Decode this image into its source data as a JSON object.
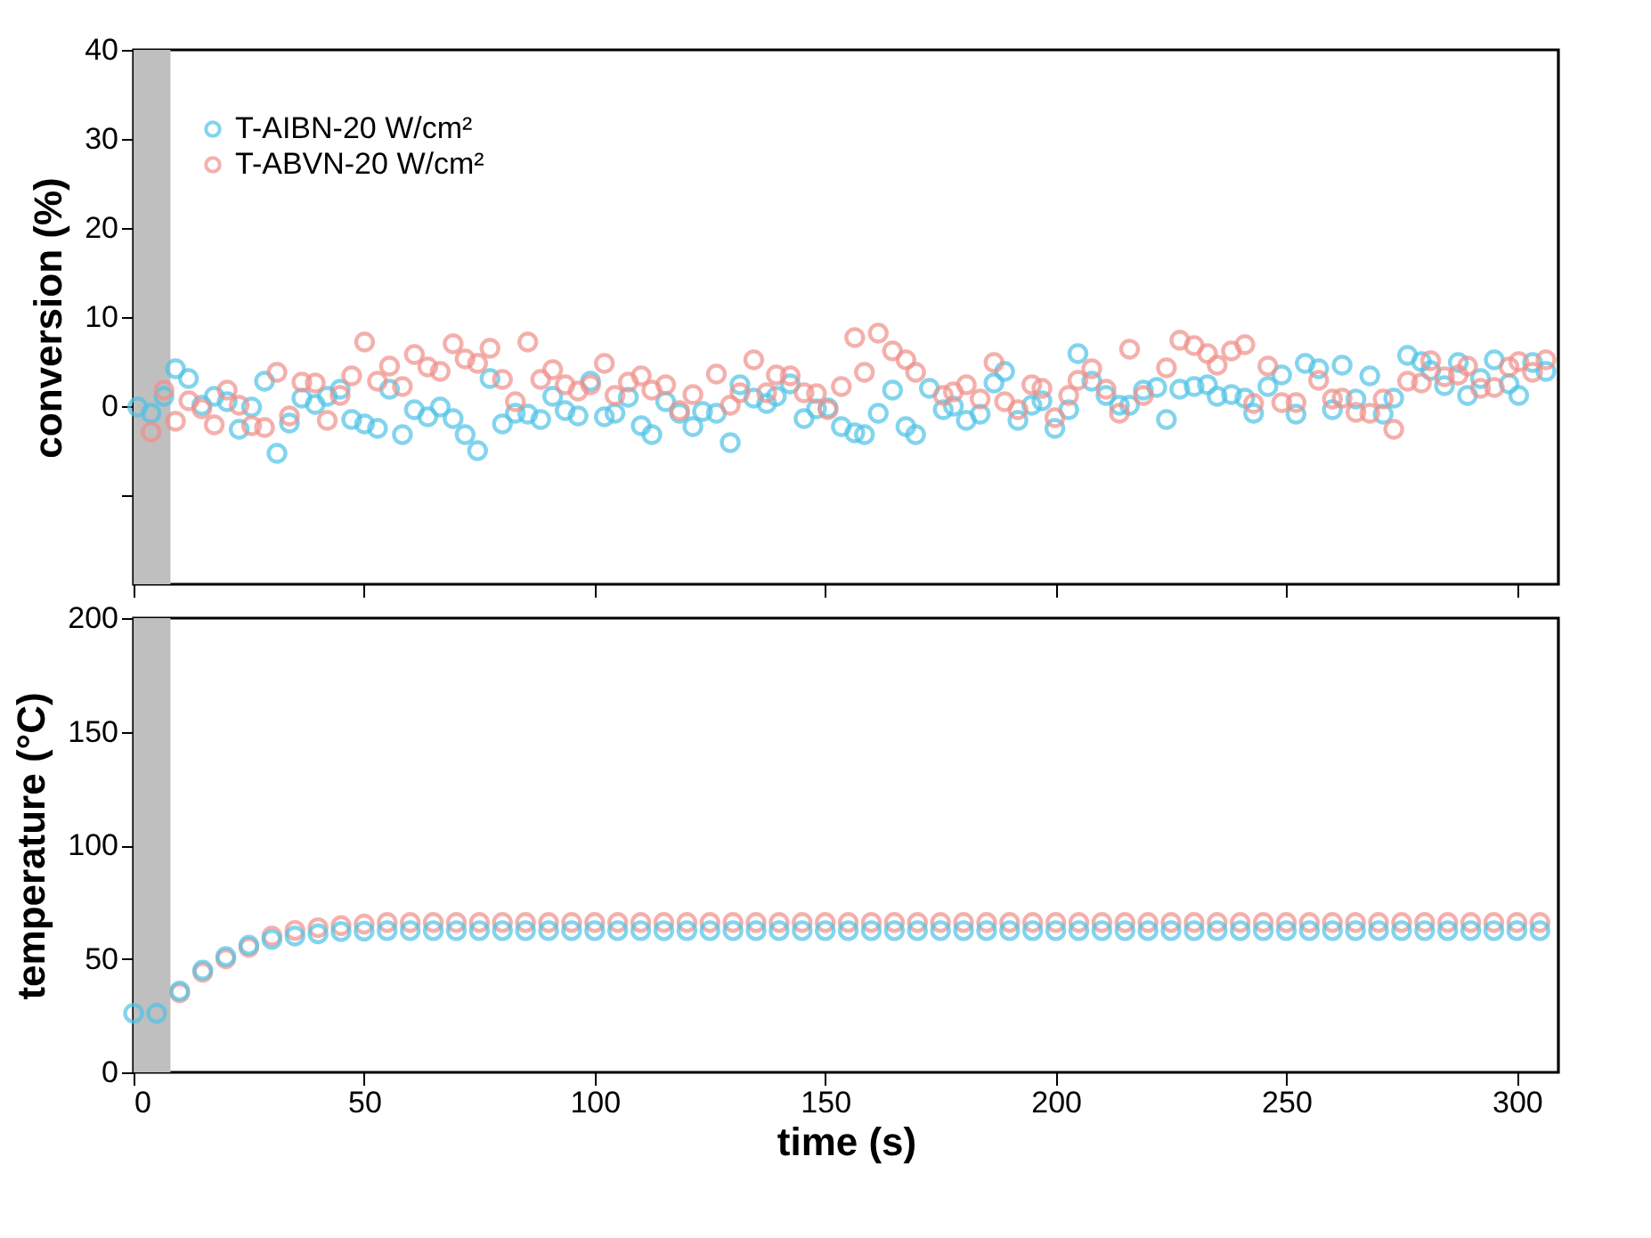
{
  "chart_data": [
    {
      "type": "scatter",
      "ylabel": "conversion (%)",
      "xlim": [
        0,
        309
      ],
      "xticks": [
        0,
        50,
        100,
        150,
        200,
        250,
        300
      ],
      "ylim": [
        -20,
        40
      ],
      "yticks": [
        {
          "value": -10,
          "label": null
        },
        0,
        10,
        20,
        30,
        40
      ],
      "tick_labels": "y",
      "marker": "circle",
      "legend": "top left",
      "bands": [
        {
          "axis": "x",
          "from": 0,
          "to": 8,
          "color": "#bfbfbf"
        }
      ],
      "series": [
        {
          "name": "T-AIBN-20 W/cm²",
          "color": "#4fc3e6",
          "x": [
            0.9,
            3.8,
            6.6,
            9.1,
            11.9,
            14.8,
            17.5,
            20.3,
            22.9,
            25.6,
            28.4,
            31.1,
            33.8,
            36.5,
            39.4,
            42,
            44.8,
            47.3,
            50.1,
            52.9,
            55.5,
            58.3,
            60.9,
            63.8,
            66.5,
            69.3,
            71.9,
            74.6,
            77.3,
            80,
            82.8,
            85.5,
            88.3,
            90.9,
            93.6,
            96.4,
            99.1,
            102.1,
            104.4,
            107.3,
            110.1,
            112.4,
            115.4,
            118.4,
            121.3,
            123.4,
            126.4,
            129.4,
            131.5,
            134.5,
            137.3,
            139.4,
            142.4,
            145.4,
            148.1,
            150.6,
            153.5,
            156.4,
            158.5,
            161.5,
            164.6,
            167.5,
            169.6,
            172.6,
            175.6,
            177.8,
            180.6,
            183.6,
            186.6,
            188.9,
            191.8,
            194.8,
            197,
            199.8,
            202.8,
            204.8,
            207.8,
            210.9,
            213.8,
            216,
            219,
            221.9,
            224,
            226.9,
            230,
            232.9,
            235,
            238.1,
            241,
            242.9,
            246,
            249,
            252.1,
            254.1,
            257,
            260,
            262.1,
            265.1,
            268.1,
            271,
            273.3,
            276.3,
            279.3,
            281.3,
            284.3,
            287.3,
            289.3,
            292.1,
            295.1,
            298.3,
            300.4,
            303.4,
            306.3
          ],
          "values": [
            -0.1,
            -0.8,
            1.1,
            4.2,
            3.1,
            0.1,
            1.1,
            0.5,
            -2.6,
            -0.1,
            2.8,
            -5.3,
            -1.9,
            0.9,
            0.2,
            1.1,
            1.9,
            -1.5,
            -2.0,
            -2.5,
            1.9,
            -3.2,
            -0.4,
            -1.2,
            -0.1,
            -1.4,
            -3.2,
            -5.0,
            3.1,
            -2.0,
            -0.8,
            -0.9,
            -1.5,
            1.1,
            -0.5,
            -1.1,
            2.8,
            -1.2,
            -0.8,
            1.0,
            -2.2,
            -3.2,
            0.5,
            -0.8,
            -2.3,
            -0.6,
            -0.8,
            -4.1,
            2.4,
            0.9,
            0.3,
            1.1,
            2.5,
            -1.4,
            -0.3,
            -0.2,
            -2.3,
            -3.0,
            -3.2,
            -0.8,
            1.8,
            -2.3,
            -3.2,
            2.0,
            -0.4,
            0,
            -1.6,
            -0.9,
            2.6,
            3.9,
            -1.6,
            0.1,
            0.6,
            -2.5,
            -0.4,
            5.9,
            2.8,
            1.2,
            0.1,
            0.1,
            1.8,
            2.1,
            -1.5,
            1.9,
            2.2,
            2.4,
            1.1,
            1.3,
            0.9,
            -0.8,
            2.2,
            3.5,
            -0.9,
            4.8,
            4.2,
            -0.4,
            4.6,
            0.8,
            3.4,
            -0.9,
            0.9,
            5.7,
            5.0,
            4.0,
            2.3,
            4.9,
            1.2,
            3.1,
            5.2,
            2.5,
            1.2,
            4.9,
            3.9
          ]
        },
        {
          "name": "T-ABVN-20 W/cm²",
          "color": "#f0908a",
          "x": [
            3.8,
            6.6,
            9.1,
            12,
            14.8,
            17.5,
            20.3,
            22.9,
            25.6,
            28.4,
            31.1,
            33.8,
            36.5,
            39.4,
            42,
            44.8,
            47.3,
            50.1,
            52.9,
            55.5,
            58.3,
            60.9,
            63.8,
            66.5,
            69.3,
            71.9,
            74.6,
            77.3,
            80,
            82.8,
            85.5,
            88.3,
            90.9,
            93.6,
            96.4,
            99.1,
            102.1,
            104.4,
            107.3,
            110.1,
            112.4,
            115.4,
            118.4,
            121.3,
            126.4,
            129.4,
            131.5,
            134.5,
            137.3,
            139.4,
            142.4,
            145.4,
            148.1,
            150.6,
            153.5,
            156.4,
            158.5,
            161.5,
            164.6,
            167.5,
            169.6,
            175.6,
            177.8,
            180.6,
            183.6,
            186.6,
            188.9,
            191.8,
            194.8,
            197,
            199.8,
            202.8,
            204.8,
            207.8,
            210.9,
            213.8,
            216,
            219,
            224,
            226.9,
            230,
            232.9,
            235,
            238.1,
            241,
            242.9,
            246,
            249,
            252.1,
            257,
            260,
            262.1,
            265.1,
            268.1,
            271,
            273.3,
            276.3,
            279.3,
            281.3,
            284.3,
            287.3,
            289.3,
            292.1,
            295.1,
            298.3,
            300.4,
            303.4,
            306.3
          ],
          "values": [
            -2.9,
            1.8,
            -1.7,
            0.6,
            -0.3,
            -2.1,
            1.8,
            0.1,
            -2.2,
            -2.4,
            3.8,
            -1.1,
            2.7,
            2.6,
            -1.6,
            1.2,
            3.4,
            7.2,
            2.8,
            4.5,
            2.2,
            5.8,
            4.4,
            3.9,
            7.0,
            5.3,
            4.8,
            6.5,
            3.0,
            0.5,
            7.2,
            3.0,
            4.1,
            2.4,
            1.7,
            2.4,
            4.8,
            1.2,
            2.7,
            3.4,
            1.8,
            2.4,
            -0.5,
            1.3,
            3.6,
            0.1,
            1.5,
            5.2,
            1.5,
            3.5,
            3.4,
            1.5,
            1.4,
            -0.4,
            2.2,
            7.7,
            3.8,
            8.2,
            6.2,
            5.2,
            3.8,
            1.2,
            1.6,
            2.4,
            0.8,
            4.9,
            0.5,
            -0.4,
            2.4,
            2.0,
            -1.3,
            1.2,
            2.9,
            4.2,
            1.9,
            -0.8,
            6.4,
            1.2,
            4.3,
            7.4,
            6.8,
            5.9,
            4.6,
            6.2,
            6.9,
            0.3,
            4.5,
            0.4,
            0.4,
            2.9,
            0.8,
            0.9,
            -0.7,
            -0.8,
            0.8,
            -2.6,
            2.8,
            2.6,
            5.1,
            3.3,
            3.5,
            4.5,
            2.0,
            2.1,
            4.4,
            5.0,
            3.8,
            5.2
          ]
        }
      ]
    },
    {
      "type": "scatter",
      "xlabel": "time (s)",
      "ylabel": "temperature (°C)",
      "xlim": [
        0,
        309
      ],
      "xticks": [
        0,
        50,
        100,
        150,
        200,
        250,
        300
      ],
      "ylim": [
        0,
        200
      ],
      "yticks": [
        0,
        50,
        100,
        150,
        200
      ],
      "marker": "circle",
      "bands": [
        {
          "axis": "x",
          "from": 0,
          "to": 8,
          "color": "#bfbfbf"
        }
      ],
      "x": [
        0,
        5,
        10,
        15,
        20,
        25,
        30,
        35,
        40,
        45,
        50,
        55,
        60,
        65,
        70,
        75,
        80,
        85,
        90,
        95,
        100,
        105,
        110,
        115,
        120,
        125,
        130,
        135,
        140,
        145,
        150,
        155,
        160,
        165,
        170,
        175,
        180,
        185,
        190,
        195,
        200,
        205,
        210,
        215,
        220,
        225,
        230,
        235,
        240,
        245,
        250,
        255,
        260,
        265,
        270,
        275,
        280,
        285,
        290,
        295,
        300,
        305
      ],
      "series": [
        {
          "color": "#f0908a",
          "values": [
            null,
            null,
            35,
            44,
            50,
            55,
            60,
            62.5,
            63.7,
            64.6,
            65.3,
            66,
            66,
            66,
            66,
            66,
            66,
            66,
            66,
            66,
            66,
            66,
            66,
            66,
            66,
            66,
            66,
            66,
            66,
            66,
            66,
            66,
            66,
            66,
            66,
            66,
            66,
            66,
            66,
            66,
            66,
            66,
            66,
            66,
            66,
            66,
            66,
            66,
            66,
            66,
            66,
            66,
            66,
            66,
            66,
            66,
            66,
            66,
            66,
            66,
            66,
            66
          ]
        },
        {
          "color": "#4fc3e6",
          "values": [
            26,
            26,
            35.8,
            45,
            51,
            56,
            58.5,
            60,
            61,
            62,
            62.2,
            62.4,
            62.4,
            62.4,
            62.4,
            62.4,
            62.4,
            62.4,
            62.4,
            62.4,
            62.4,
            62.4,
            62.4,
            62.4,
            62.4,
            62.4,
            62.4,
            62.4,
            62.4,
            62.4,
            62.4,
            62.4,
            62.4,
            62.4,
            62.4,
            62.4,
            62.4,
            62.4,
            62.4,
            62.4,
            62.4,
            62.4,
            62.4,
            62.4,
            62.4,
            62.4,
            62.4,
            62.4,
            62.4,
            62.4,
            62.4,
            62.4,
            62.4,
            62.4,
            62.4,
            62.4,
            62.4,
            62.4,
            62.4,
            62.4,
            62.4,
            62.4
          ]
        }
      ]
    }
  ]
}
